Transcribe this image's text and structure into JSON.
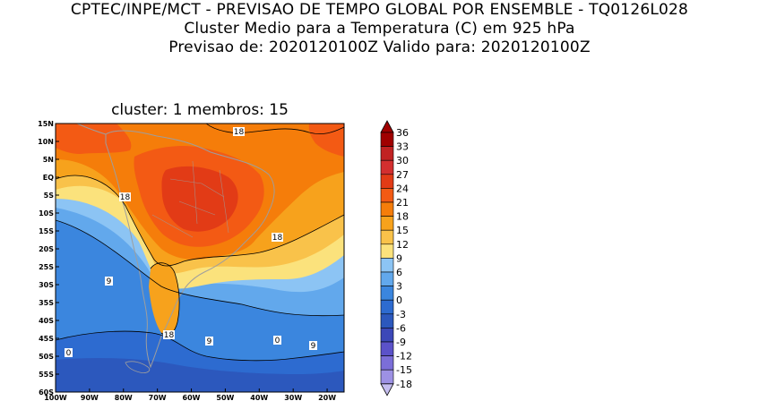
{
  "header": {
    "line1": "CPTEC/INPE/MCT - PREVISAO DE TEMPO GLOBAL POR ENSEMBLE - TQ0126L028",
    "line2": "Cluster Medio para a Temperatura (C) em 925 hPa",
    "line3": "Previsao de: 2020120100Z   Valido para: 2020120100Z"
  },
  "panel": {
    "title": "cluster: 1  membros: 15"
  },
  "axes": {
    "lat_labels": [
      "15N",
      "10N",
      "5N",
      "EQ",
      "5S",
      "10S",
      "15S",
      "20S",
      "25S",
      "30S",
      "35S",
      "40S",
      "45S",
      "50S",
      "55S",
      "60S"
    ],
    "lon_labels": [
      "100W",
      "90W",
      "80W",
      "70W",
      "60W",
      "50W",
      "40W",
      "30W",
      "20W"
    ]
  },
  "contour_labels": {
    "a": "18",
    "b": "18",
    "c": "18",
    "d": "18",
    "e": "9",
    "f": "9",
    "g": "9",
    "h": "0",
    "i": "0"
  },
  "colorbar": {
    "labels": [
      "36",
      "33",
      "30",
      "27",
      "24",
      "21",
      "18",
      "15",
      "12",
      "9",
      "6",
      "3",
      "0",
      "-3",
      "-6",
      "-9",
      "-12",
      "-15",
      "-18"
    ],
    "colors": [
      "#a00000",
      "#c12222",
      "#d32f2f",
      "#e23b16",
      "#f35a14",
      "#f57d0a",
      "#f7a21c",
      "#f9c24a",
      "#fbe27c",
      "#8cc4f4",
      "#62a8ec",
      "#3b86de",
      "#2d6bd0",
      "#2c58bd",
      "#3c48b8",
      "#5b52c9",
      "#7b6ed8",
      "#9d91e4",
      "#c5bef0"
    ]
  },
  "colors": {
    "land_outline": "#9e9e9e",
    "contour": "#000000"
  }
}
